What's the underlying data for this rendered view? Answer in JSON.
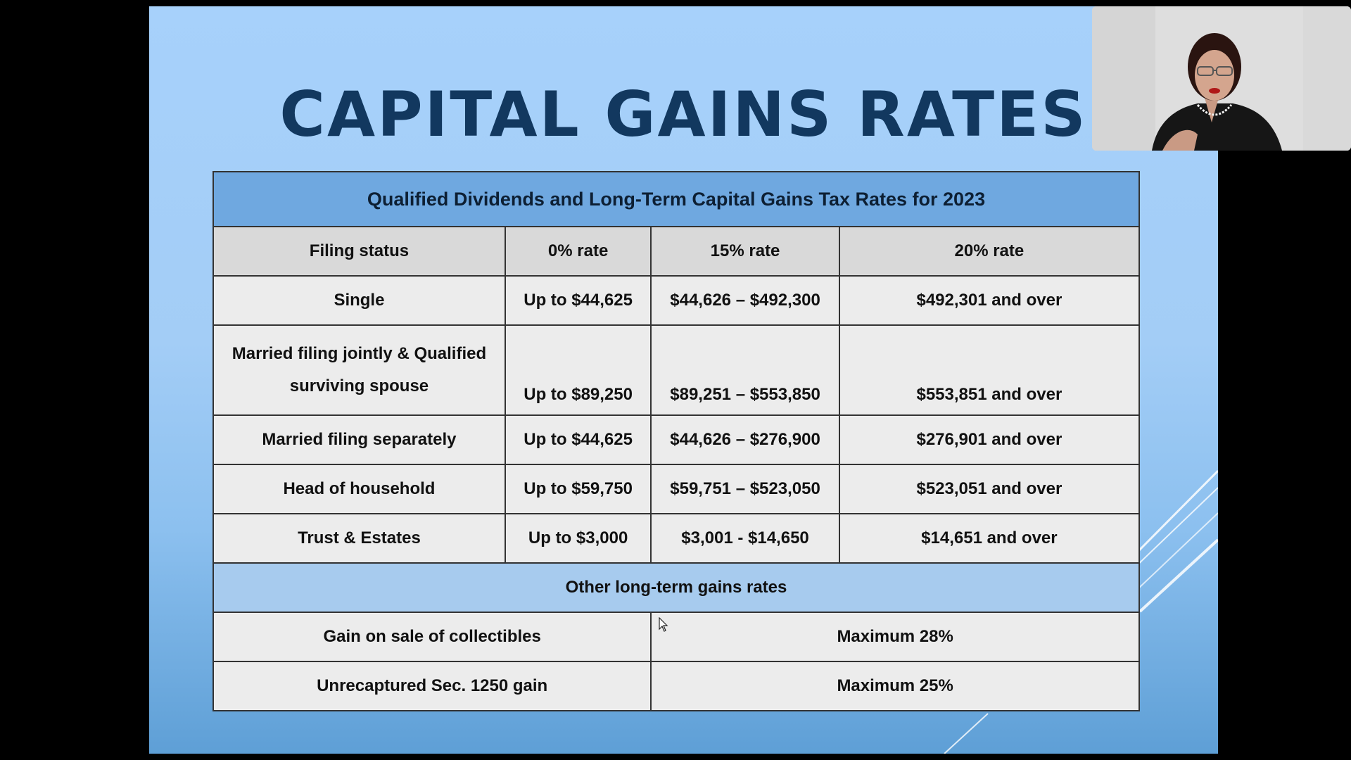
{
  "slide": {
    "title": "CAPITAL GAINS RATES"
  },
  "table": {
    "caption": "Qualified Dividends and Long-Term Capital Gains Tax Rates for 2023",
    "headers": [
      "Filing status",
      "0% rate",
      "15% rate",
      "20% rate"
    ],
    "rows": [
      {
        "status": "Single",
        "zero": "Up to $44,625",
        "fifteen": "$44,626 – $492,300",
        "twenty": "$492,301 and over"
      },
      {
        "status": "Married filing jointly & Qualified surviving spouse",
        "zero": "Up to $89,250",
        "fifteen": "$89,251 – $553,850",
        "twenty": "$553,851 and over"
      },
      {
        "status": "Married filing separately",
        "zero": "Up to $44,625",
        "fifteen": "$44,626 – $276,900",
        "twenty": "$276,901 and over"
      },
      {
        "status": "Head of household",
        "zero": "Up to $59,750",
        "fifteen": "$59,751 – $523,050",
        "twenty": "$523,051 and over"
      },
      {
        "status": "Trust & Estates",
        "zero": "Up to $3,000",
        "fifteen": "$3,001 - $14,650",
        "twenty": "$14,651 and over"
      }
    ],
    "other_caption": "Other long-term gains rates",
    "other_rows": [
      {
        "label": "Gain on sale of collectibles",
        "value": "Maximum 28%"
      },
      {
        "label": "Unrecaptured Sec. 1250 gain",
        "value": "Maximum 25%"
      }
    ]
  },
  "colors": {
    "title": "#12385f",
    "caption_bg": "#6fa8e0",
    "header_bg": "#d9d9d9",
    "cell_bg": "#ececec",
    "other_header_bg": "#a7cbee"
  }
}
